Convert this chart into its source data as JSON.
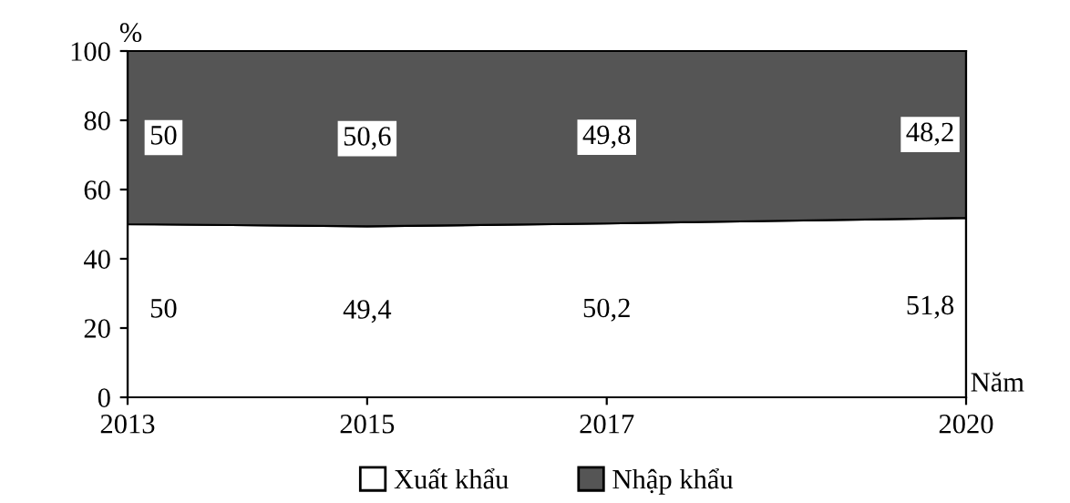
{
  "chart_data": {
    "type": "area",
    "stacked": true,
    "ylabel": "%",
    "xlabel": "Năm",
    "x": [
      2013,
      2015,
      2017,
      2020
    ],
    "xlim": [
      2013,
      2020
    ],
    "xticks": [
      2013,
      2015,
      2017,
      2020
    ],
    "ylim": [
      0,
      100
    ],
    "yticks": [
      0,
      20,
      40,
      60,
      80,
      100
    ],
    "grid": false,
    "legend": "bottom",
    "series": [
      {
        "name": "Xuất khẩu",
        "color": "#ffffff",
        "values": [
          50,
          49.4,
          50.2,
          51.8
        ],
        "value_labels": [
          "50",
          "49,4",
          "50,2",
          "51,8"
        ]
      },
      {
        "name": "Nhập khẩu",
        "color": "#555555",
        "values": [
          50,
          50.6,
          49.8,
          48.2
        ],
        "value_labels": [
          "50",
          "50,6",
          "49,8",
          "48,2"
        ]
      }
    ]
  }
}
